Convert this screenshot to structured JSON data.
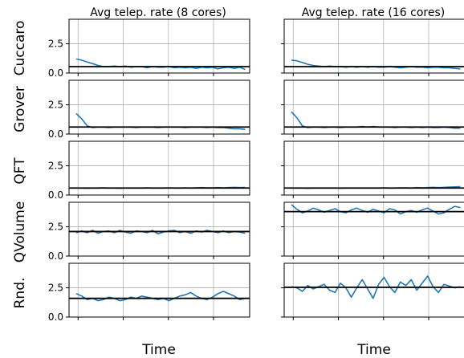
{
  "chart_data": {
    "type": "line",
    "columns": [
      {
        "title": "Avg telep. rate (8 cores)"
      },
      {
        "title": "Avg telep. rate (16 cores)"
      }
    ],
    "rows": [
      {
        "label": "Cuccaro"
      },
      {
        "label": "Grover"
      },
      {
        "label": "QFT"
      },
      {
        "label": "QVolume"
      },
      {
        "label": "Rnd."
      }
    ],
    "xlabel": "Time",
    "ylim": [
      0,
      4.6
    ],
    "yticks": [
      0.0,
      2.5
    ],
    "ytick_labels": [
      "0.0",
      "2.5"
    ],
    "grid": true,
    "line_color": "#1f77b4",
    "ref_color": "#000000",
    "panels": [
      [
        {
          "ref": 0.55,
          "series": [
            1.2,
            1.1,
            0.95,
            0.8,
            0.65,
            0.55,
            0.55,
            0.6,
            0.55,
            0.6,
            0.5,
            0.55,
            0.55,
            0.45,
            0.55,
            0.5,
            0.5,
            0.55,
            0.45,
            0.5,
            0.45,
            0.5,
            0.4,
            0.5,
            0.45,
            0.5,
            0.35,
            0.45,
            0.5,
            0.4,
            0.5,
            0.3
          ]
        },
        {
          "ref": 0.6,
          "series": [
            1.75,
            1.3,
            0.7,
            0.55,
            0.6,
            0.6,
            0.55,
            0.6,
            0.6,
            0.6,
            0.6,
            0.55,
            0.6,
            0.6,
            0.6,
            0.55,
            0.6,
            0.6,
            0.6,
            0.6,
            0.55,
            0.6,
            0.6,
            0.6,
            0.55,
            0.6,
            0.55,
            0.55,
            0.5,
            0.45,
            0.45,
            0.4
          ]
        },
        {
          "ref": 0.6,
          "series": [
            0.6,
            0.6,
            0.58,
            0.6,
            0.6,
            0.62,
            0.6,
            0.6,
            0.58,
            0.6,
            0.6,
            0.6,
            0.6,
            0.62,
            0.6,
            0.6,
            0.6,
            0.62,
            0.6,
            0.6,
            0.62,
            0.6,
            0.62,
            0.64,
            0.62,
            0.62,
            0.64,
            0.62,
            0.64,
            0.66,
            0.64,
            0.65
          ]
        },
        {
          "ref": 2.1,
          "series": [
            2.0,
            2.15,
            2.0,
            2.2,
            1.95,
            2.1,
            2.15,
            2.0,
            2.2,
            2.05,
            1.95,
            2.15,
            2.1,
            2.0,
            2.2,
            1.9,
            2.05,
            2.15,
            2.2,
            2.0,
            2.1,
            1.95,
            2.15,
            2.05,
            2.2,
            2.1,
            2.0,
            2.15,
            2.0,
            2.1,
            2.05,
            1.95
          ]
        },
        {
          "ref": 1.6,
          "series": [
            2.0,
            1.8,
            1.5,
            1.6,
            1.4,
            1.5,
            1.7,
            1.6,
            1.4,
            1.5,
            1.7,
            1.6,
            1.8,
            1.7,
            1.6,
            1.5,
            1.6,
            1.4,
            1.6,
            1.8,
            1.9,
            2.1,
            1.8,
            1.6,
            1.5,
            1.7,
            2.0,
            2.2,
            2.0,
            1.8,
            1.5,
            1.6
          ]
        }
      ],
      [
        {
          "ref": 0.55,
          "series": [
            1.1,
            1.05,
            0.9,
            0.75,
            0.65,
            0.6,
            0.55,
            0.6,
            0.55,
            0.55,
            0.5,
            0.55,
            0.5,
            0.55,
            0.5,
            0.55,
            0.5,
            0.5,
            0.55,
            0.5,
            0.45,
            0.5,
            0.55,
            0.5,
            0.5,
            0.45,
            0.5,
            0.5,
            0.45,
            0.45,
            0.4,
            0.35
          ]
        },
        {
          "ref": 0.6,
          "series": [
            1.9,
            1.4,
            0.7,
            0.55,
            0.6,
            0.6,
            0.55,
            0.6,
            0.6,
            0.55,
            0.6,
            0.6,
            0.6,
            0.65,
            0.6,
            0.65,
            0.6,
            0.6,
            0.6,
            0.55,
            0.6,
            0.6,
            0.55,
            0.6,
            0.55,
            0.6,
            0.55,
            0.55,
            0.6,
            0.55,
            0.5,
            0.5
          ]
        },
        {
          "ref": 0.6,
          "series": [
            0.6,
            0.6,
            0.6,
            0.58,
            0.6,
            0.6,
            0.6,
            0.6,
            0.6,
            0.58,
            0.6,
            0.6,
            0.6,
            0.6,
            0.6,
            0.6,
            0.6,
            0.62,
            0.6,
            0.6,
            0.62,
            0.62,
            0.6,
            0.64,
            0.62,
            0.64,
            0.66,
            0.64,
            0.66,
            0.68,
            0.7,
            0.72
          ]
        },
        {
          "ref": 3.8,
          "series": [
            4.4,
            4.0,
            3.7,
            3.85,
            4.1,
            3.95,
            3.75,
            3.9,
            4.05,
            3.8,
            3.7,
            3.95,
            4.1,
            3.9,
            3.75,
            4.0,
            3.85,
            3.7,
            4.05,
            3.95,
            3.6,
            3.8,
            3.9,
            3.75,
            3.95,
            4.1,
            3.85,
            3.6,
            3.7,
            4.0,
            4.25,
            4.15
          ]
        },
        {
          "ref": 2.55,
          "series": [
            2.6,
            2.5,
            2.2,
            2.7,
            2.4,
            2.6,
            2.8,
            2.3,
            2.1,
            2.9,
            2.5,
            1.7,
            2.5,
            3.2,
            2.4,
            1.6,
            2.8,
            3.4,
            2.6,
            2.1,
            3.0,
            2.7,
            3.2,
            2.3,
            2.9,
            3.5,
            2.6,
            2.1,
            2.8,
            2.65,
            2.5,
            2.6
          ]
        }
      ]
    ]
  }
}
